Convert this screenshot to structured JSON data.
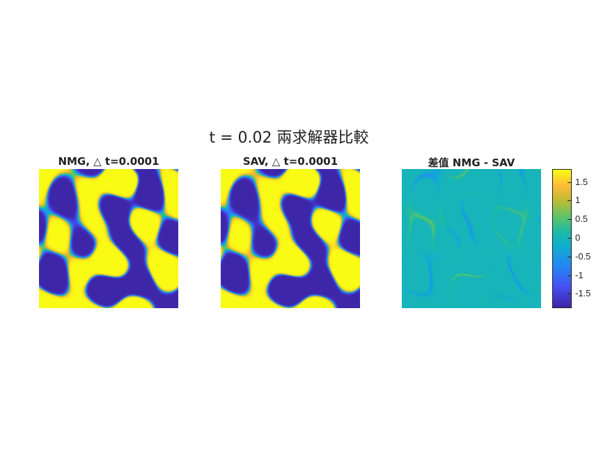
{
  "suptitle": "t = 0.02 兩求解器比較",
  "chart_data": [
    {
      "type": "heatmap",
      "title": "NMG, △ t=0.0001",
      "description_values": "phase field, two phases",
      "zlim": [
        -1,
        1
      ]
    },
    {
      "type": "heatmap",
      "title": "SAV, △ t=0.0001",
      "zlim": [
        -1,
        1
      ]
    },
    {
      "type": "heatmap",
      "title": "差值 NMG - SAV",
      "colorbar": {
        "ticks": [
          1.5,
          1,
          0.5,
          0,
          -0.5,
          -1,
          -1.5
        ],
        "tick_labels": [
          "1.5",
          "1",
          "0.5",
          "0",
          "-0.5",
          "-1",
          "-1.5"
        ],
        "zlim": [
          -1.85,
          1.85
        ]
      }
    }
  ],
  "colors": {
    "low": "#3e26a8",
    "high": "#f9fb15",
    "diff_background": "#1fb3a6"
  }
}
